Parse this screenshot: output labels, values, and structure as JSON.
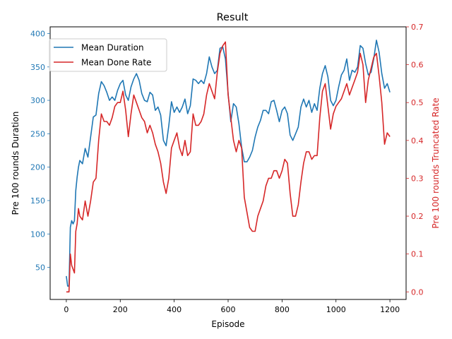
{
  "chart_data": {
    "type": "line",
    "title": "Result",
    "xlabel": "Episode",
    "ylabel_left": "Pre 100 rounds Duration",
    "ylabel_right": "Pre 100 rounds Truncated Rate",
    "xlim": [
      -60,
      1260
    ],
    "ylim_left": [
      2,
      410
    ],
    "ylim_right": [
      -0.02,
      0.7
    ],
    "xticks": [
      0,
      200,
      400,
      600,
      800,
      1000,
      1200
    ],
    "yticks_left": [
      50,
      100,
      150,
      200,
      250,
      300,
      350,
      400
    ],
    "yticks_right": [
      0.0,
      0.1,
      0.2,
      0.3,
      0.4,
      0.5,
      0.6,
      0.7
    ],
    "legend_position": "upper-left",
    "colors": {
      "left_axis": "#1f77b4",
      "right_axis": "#d62728"
    },
    "series": [
      {
        "name": "Mean Duration",
        "axis": "left",
        "color": "#1f77b4",
        "x": [
          0,
          5,
          10,
          15,
          20,
          25,
          30,
          35,
          40,
          45,
          50,
          60,
          70,
          80,
          90,
          100,
          110,
          120,
          130,
          140,
          150,
          160,
          170,
          180,
          190,
          200,
          210,
          220,
          230,
          240,
          250,
          260,
          270,
          280,
          290,
          300,
          310,
          320,
          330,
          340,
          350,
          360,
          370,
          380,
          390,
          400,
          410,
          420,
          430,
          440,
          450,
          460,
          470,
          480,
          490,
          500,
          510,
          520,
          530,
          540,
          550,
          560,
          570,
          580,
          590,
          600,
          610,
          620,
          630,
          640,
          650,
          660,
          670,
          680,
          690,
          700,
          710,
          720,
          730,
          740,
          750,
          760,
          770,
          780,
          790,
          800,
          810,
          820,
          830,
          840,
          850,
          860,
          870,
          880,
          890,
          900,
          910,
          920,
          930,
          940,
          950,
          960,
          970,
          980,
          990,
          1000,
          1010,
          1020,
          1030,
          1040,
          1050,
          1060,
          1070,
          1080,
          1090,
          1100,
          1110,
          1120,
          1130,
          1140,
          1150,
          1160,
          1170,
          1180,
          1190,
          1200
        ],
        "values": [
          37,
          22,
          22,
          110,
          120,
          115,
          120,
          165,
          185,
          200,
          210,
          205,
          228,
          215,
          245,
          275,
          278,
          310,
          328,
          322,
          312,
          300,
          305,
          300,
          315,
          325,
          330,
          308,
          300,
          320,
          332,
          340,
          330,
          310,
          300,
          298,
          312,
          308,
          285,
          290,
          278,
          240,
          232,
          262,
          298,
          282,
          290,
          282,
          290,
          302,
          280,
          292,
          332,
          330,
          325,
          330,
          325,
          340,
          365,
          350,
          340,
          345,
          378,
          380,
          362,
          310,
          268,
          295,
          290,
          265,
          230,
          208,
          208,
          215,
          225,
          245,
          260,
          270,
          285,
          285,
          280,
          298,
          300,
          285,
          268,
          285,
          290,
          280,
          248,
          240,
          250,
          260,
          290,
          302,
          290,
          300,
          282,
          295,
          285,
          318,
          340,
          352,
          335,
          300,
          292,
          300,
          320,
          338,
          345,
          362,
          330,
          345,
          342,
          350,
          382,
          378,
          355,
          338,
          342,
          362,
          390,
          372,
          340,
          318,
          325,
          312
        ]
      },
      {
        "name": "Mean Done Rate",
        "axis": "right",
        "color": "#d62728",
        "x": [
          0,
          5,
          10,
          15,
          20,
          25,
          30,
          35,
          40,
          45,
          50,
          60,
          70,
          80,
          90,
          100,
          110,
          120,
          130,
          140,
          150,
          160,
          170,
          180,
          190,
          200,
          210,
          220,
          230,
          240,
          250,
          260,
          270,
          280,
          290,
          300,
          310,
          320,
          330,
          340,
          350,
          360,
          370,
          380,
          390,
          400,
          410,
          420,
          430,
          440,
          450,
          460,
          470,
          480,
          490,
          500,
          510,
          520,
          530,
          540,
          550,
          560,
          570,
          580,
          590,
          600,
          610,
          620,
          630,
          640,
          650,
          660,
          670,
          680,
          690,
          700,
          710,
          720,
          730,
          740,
          750,
          760,
          770,
          780,
          790,
          800,
          810,
          820,
          830,
          840,
          850,
          860,
          870,
          880,
          890,
          900,
          910,
          920,
          930,
          940,
          950,
          960,
          970,
          980,
          990,
          1000,
          1010,
          1020,
          1030,
          1040,
          1050,
          1060,
          1070,
          1080,
          1090,
          1100,
          1110,
          1120,
          1130,
          1140,
          1150,
          1160,
          1170,
          1180,
          1190,
          1200
        ],
        "values": [
          0,
          0,
          0,
          0.1,
          0.07,
          0.06,
          0.05,
          0.16,
          0.18,
          0.22,
          0.2,
          0.19,
          0.24,
          0.2,
          0.24,
          0.29,
          0.3,
          0.4,
          0.47,
          0.45,
          0.45,
          0.44,
          0.46,
          0.49,
          0.5,
          0.5,
          0.53,
          0.48,
          0.41,
          0.47,
          0.52,
          0.5,
          0.48,
          0.46,
          0.45,
          0.42,
          0.44,
          0.42,
          0.39,
          0.37,
          0.34,
          0.29,
          0.26,
          0.3,
          0.38,
          0.4,
          0.42,
          0.38,
          0.36,
          0.4,
          0.36,
          0.37,
          0.47,
          0.44,
          0.44,
          0.45,
          0.47,
          0.52,
          0.55,
          0.53,
          0.51,
          0.58,
          0.63,
          0.65,
          0.66,
          0.52,
          0.46,
          0.4,
          0.37,
          0.4,
          0.38,
          0.25,
          0.21,
          0.17,
          0.16,
          0.16,
          0.2,
          0.22,
          0.24,
          0.28,
          0.3,
          0.3,
          0.32,
          0.32,
          0.3,
          0.32,
          0.35,
          0.34,
          0.26,
          0.2,
          0.2,
          0.23,
          0.29,
          0.34,
          0.37,
          0.37,
          0.35,
          0.36,
          0.36,
          0.46,
          0.53,
          0.55,
          0.49,
          0.43,
          0.47,
          0.49,
          0.5,
          0.51,
          0.53,
          0.55,
          0.52,
          0.54,
          0.56,
          0.58,
          0.63,
          0.6,
          0.5,
          0.56,
          0.59,
          0.62,
          0.63,
          0.57,
          0.5,
          0.39,
          0.42,
          0.41
        ]
      }
    ]
  }
}
